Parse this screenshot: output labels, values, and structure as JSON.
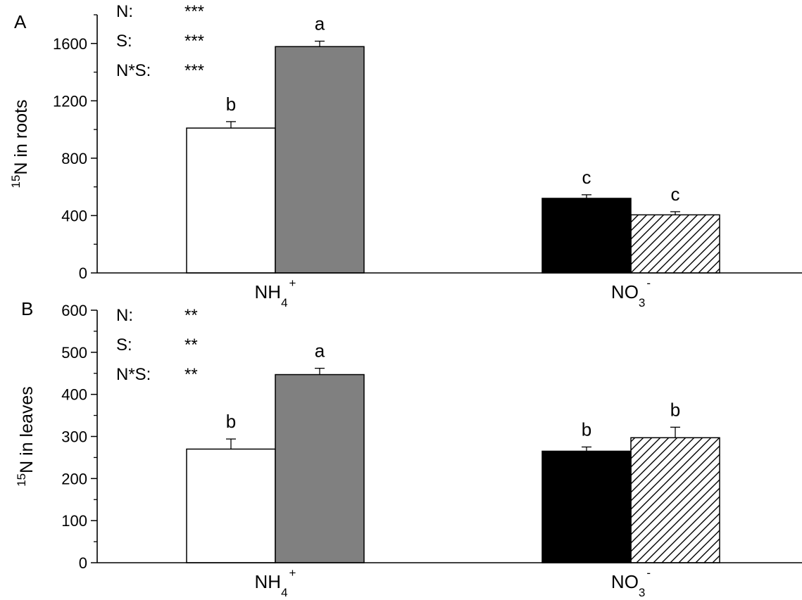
{
  "chart_data": [
    {
      "type": "bar",
      "panel_label": "A",
      "ylabel": {
        "sup": "15",
        "text": "N in roots"
      },
      "ylim": [
        0,
        1800
      ],
      "yticks": [
        0,
        400,
        800,
        1200,
        1600
      ],
      "y_minor_step": 200,
      "categories": [
        {
          "base": "NH",
          "sub": "4",
          "sup": "+"
        },
        {
          "base": "NO",
          "sub": "3",
          "sup": "-"
        }
      ],
      "bars": [
        {
          "category": 0,
          "value": 1010,
          "error": 45,
          "letter": "b",
          "fill": "#ffffff",
          "hatch": false
        },
        {
          "category": 0,
          "value": 1578,
          "error": 38,
          "letter": "a",
          "fill": "#808080",
          "hatch": false
        },
        {
          "category": 1,
          "value": 520,
          "error": 25,
          "letter": "c",
          "fill": "#000000",
          "hatch": false
        },
        {
          "category": 1,
          "value": 405,
          "error": 22,
          "letter": "c",
          "fill": "#ffffff",
          "hatch": true
        }
      ],
      "stats": [
        {
          "label": "N:",
          "value": "***"
        },
        {
          "label": "S:",
          "value": "***"
        },
        {
          "label": "N*S:",
          "value": "***"
        }
      ]
    },
    {
      "type": "bar",
      "panel_label": "B",
      "ylabel": {
        "sup": "15",
        "text": "N in leaves"
      },
      "ylim": [
        0,
        600
      ],
      "yticks": [
        0,
        100,
        200,
        300,
        400,
        500,
        600
      ],
      "y_minor_step": 50,
      "categories": [
        {
          "base": "NH",
          "sub": "4",
          "sup": "+"
        },
        {
          "base": "NO",
          "sub": "3",
          "sup": "-"
        }
      ],
      "bars": [
        {
          "category": 0,
          "value": 270,
          "error": 24,
          "letter": "b",
          "fill": "#ffffff",
          "hatch": false
        },
        {
          "category": 0,
          "value": 447,
          "error": 15,
          "letter": "a",
          "fill": "#808080",
          "hatch": false
        },
        {
          "category": 1,
          "value": 265,
          "error": 10,
          "letter": "b",
          "fill": "#000000",
          "hatch": false
        },
        {
          "category": 1,
          "value": 297,
          "error": 25,
          "letter": "b",
          "fill": "#ffffff",
          "hatch": true
        }
      ],
      "stats": [
        {
          "label": "N:",
          "value": "**"
        },
        {
          "label": "S:",
          "value": "**"
        },
        {
          "label": "N*S:",
          "value": "**"
        }
      ]
    }
  ]
}
